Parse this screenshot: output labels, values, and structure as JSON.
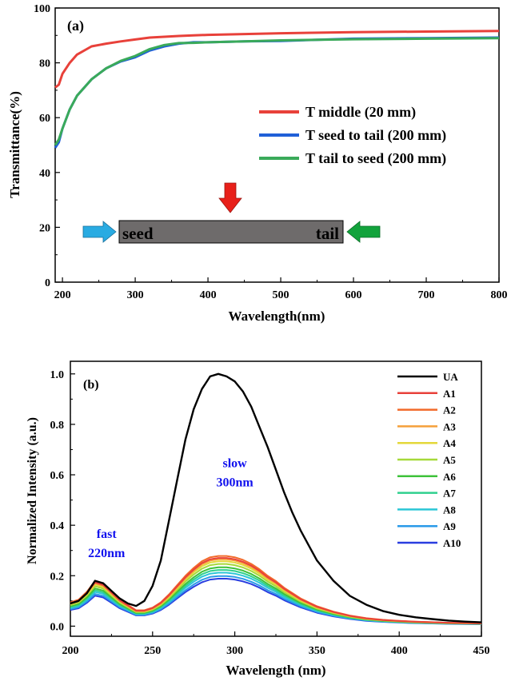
{
  "chart_data": [
    {
      "type": "line",
      "panel_label": "(a)",
      "xlabel": "Wavelength(nm)",
      "ylabel": "Transmittance(%)",
      "xlim": [
        190,
        800
      ],
      "ylim": [
        0,
        100
      ],
      "xticks": [
        200,
        300,
        400,
        500,
        600,
        700,
        800
      ],
      "yticks": [
        0,
        20,
        40,
        60,
        80,
        100
      ],
      "legend_position": "center-right",
      "series": [
        {
          "name": "T middle (20 mm)",
          "color": "#e8413a",
          "x": [
            190,
            195,
            200,
            210,
            220,
            240,
            260,
            280,
            300,
            320,
            340,
            360,
            380,
            400,
            450,
            500,
            600,
            700,
            800
          ],
          "y": [
            71,
            72,
            76,
            80,
            83,
            86,
            87,
            87.8,
            88.5,
            89.2,
            89.5,
            89.8,
            90,
            90.2,
            90.5,
            90.8,
            91.2,
            91.4,
            91.6
          ]
        },
        {
          "name": "T seed to tail (200 mm)",
          "color": "#2060d8",
          "x": [
            190,
            195,
            200,
            210,
            220,
            240,
            260,
            280,
            300,
            320,
            340,
            360,
            380,
            400,
            450,
            500,
            600,
            700,
            800
          ],
          "y": [
            49,
            51,
            56,
            63,
            68,
            74,
            78,
            80.5,
            82,
            84.5,
            86,
            87,
            87.5,
            87.5,
            87.8,
            88,
            88.8,
            89,
            89.2
          ]
        },
        {
          "name": "T tail to seed (200 mm)",
          "color": "#3aaa5a",
          "x": [
            190,
            195,
            200,
            210,
            220,
            240,
            260,
            280,
            300,
            320,
            340,
            360,
            380,
            400,
            450,
            500,
            600,
            700,
            800
          ],
          "y": [
            50,
            52,
            56,
            63,
            68,
            74,
            78,
            80.7,
            82.5,
            85,
            86.5,
            87.2,
            87.3,
            87.5,
            87.8,
            88.2,
            88.6,
            88.8,
            89
          ]
        }
      ],
      "inset": {
        "bar_left_label": "seed",
        "bar_right_label": "tail",
        "bar_color": "#6e6b6b",
        "arrow_left_color": "#29abe2",
        "arrow_right_color": "#12a33c",
        "arrow_top_color": "#e8201a"
      }
    },
    {
      "type": "line",
      "panel_label": "(b)",
      "xlabel": "Wavelength (nm)",
      "ylabel": "Normalized Intensity (a.u.)",
      "xlim": [
        200,
        450
      ],
      "ylim": [
        -0.04,
        1.05
      ],
      "xticks": [
        200,
        250,
        300,
        350,
        400,
        450
      ],
      "yticks": [
        0.0,
        0.2,
        0.4,
        0.6,
        0.8,
        1.0
      ],
      "legend_position": "top-right",
      "annotations": [
        {
          "lines": [
            "fast",
            "220nm"
          ],
          "x": 222,
          "y": 0.35
        },
        {
          "lines": [
            "slow",
            "300nm"
          ],
          "x": 300,
          "y": 0.63
        }
      ],
      "x": [
        200,
        205,
        210,
        215,
        220,
        225,
        230,
        235,
        240,
        245,
        250,
        255,
        260,
        265,
        270,
        275,
        280,
        285,
        290,
        295,
        300,
        305,
        310,
        315,
        320,
        325,
        330,
        335,
        340,
        345,
        350,
        360,
        370,
        380,
        390,
        400,
        410,
        420,
        430,
        440,
        450
      ],
      "ua_values": [
        0.09,
        0.1,
        0.13,
        0.18,
        0.17,
        0.14,
        0.11,
        0.09,
        0.08,
        0.1,
        0.16,
        0.26,
        0.42,
        0.58,
        0.74,
        0.86,
        0.94,
        0.99,
        1.0,
        0.99,
        0.97,
        0.93,
        0.87,
        0.79,
        0.71,
        0.62,
        0.53,
        0.45,
        0.38,
        0.32,
        0.26,
        0.18,
        0.12,
        0.085,
        0.06,
        0.045,
        0.035,
        0.028,
        0.022,
        0.018,
        0.015
      ],
      "base_values": [
        0.09,
        0.1,
        0.13,
        0.17,
        0.16,
        0.13,
        0.1,
        0.08,
        0.06,
        0.06,
        0.07,
        0.09,
        0.12,
        0.155,
        0.19,
        0.22,
        0.245,
        0.26,
        0.265,
        0.265,
        0.26,
        0.25,
        0.235,
        0.215,
        0.19,
        0.17,
        0.145,
        0.125,
        0.105,
        0.09,
        0.075,
        0.055,
        0.04,
        0.03,
        0.024,
        0.02,
        0.017,
        0.015,
        0.013,
        0.012,
        0.011
      ],
      "series": [
        {
          "name": "UA",
          "color": "#000000",
          "scale": null
        },
        {
          "name": "A1",
          "color": "#e8413a",
          "scale": 1.02
        },
        {
          "name": "A2",
          "color": "#f26a2a",
          "scale": 1.05
        },
        {
          "name": "A3",
          "color": "#f5a03a",
          "scale": 1.0
        },
        {
          "name": "A4",
          "color": "#e4d83a",
          "scale": 0.97
        },
        {
          "name": "A5",
          "color": "#a6d93a",
          "scale": 0.93
        },
        {
          "name": "A6",
          "color": "#3ec23a",
          "scale": 0.88
        },
        {
          "name": "A7",
          "color": "#2fd08e",
          "scale": 0.84
        },
        {
          "name": "A8",
          "color": "#2bc6d6",
          "scale": 0.8
        },
        {
          "name": "A9",
          "color": "#2a9ae8",
          "scale": 0.75
        },
        {
          "name": "A10",
          "color": "#2a3ee0",
          "scale": 0.71
        }
      ]
    }
  ]
}
